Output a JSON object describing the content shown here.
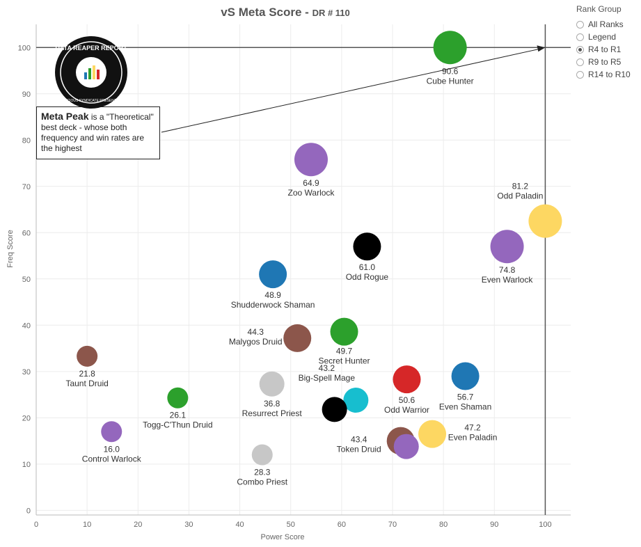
{
  "title": {
    "main": "vS Meta Score",
    "sub": "DR # 110"
  },
  "legend": {
    "title": "Rank Group",
    "options": [
      {
        "label": "All Ranks",
        "selected": false
      },
      {
        "label": "Legend",
        "selected": false
      },
      {
        "label": "R4 to R1",
        "selected": true
      },
      {
        "label": "R9 to R5",
        "selected": false
      },
      {
        "label": "R14 to R10",
        "selected": false
      }
    ]
  },
  "callout": {
    "bold": "Meta Peak",
    "text": " is a \"Theoretical\" best deck - whose both frequency and win rates are the highest"
  },
  "logo": {
    "text": "DATA REAPER REPORT",
    "small": "VICIOUS SYNDICATE PRESENTS"
  },
  "chart_data": {
    "type": "scatter",
    "xlabel": "Power Score",
    "ylabel": "Freq Score",
    "xlim": [
      0,
      105
    ],
    "ylim": [
      -1,
      105
    ],
    "xticks": [
      0,
      10,
      20,
      30,
      40,
      50,
      60,
      70,
      80,
      90,
      100
    ],
    "yticks": [
      0,
      10,
      20,
      30,
      40,
      50,
      60,
      70,
      80,
      90,
      100
    ],
    "grid": true,
    "reference_lines": {
      "x": 100,
      "y": 100
    },
    "points": [
      {
        "name": "Cube Hunter",
        "score": "90.6",
        "x": 81.3,
        "y": 100,
        "color": "#2ca02c"
      },
      {
        "name": "Zoo Warlock",
        "score": "64.9",
        "x": 54.0,
        "y": 75.8,
        "color": "#9467bd"
      },
      {
        "name": "Odd Paladin",
        "score": "81.2",
        "x": 100.0,
        "y": 62.5,
        "color": "#fdd762"
      },
      {
        "name": "Even Warlock",
        "score": "74.8",
        "x": 92.5,
        "y": 57.0,
        "color": "#9467bd"
      },
      {
        "name": "Odd Rogue",
        "score": "61.0",
        "x": 65.0,
        "y": 57.0,
        "color": "#000000"
      },
      {
        "name": "Shudderwock Shaman",
        "score": "48.9",
        "x": 46.5,
        "y": 51.0,
        "color": "#1f77b4"
      },
      {
        "name": "Secret Hunter",
        "score": "49.7",
        "x": 60.5,
        "y": 38.6,
        "color": "#2ca02c"
      },
      {
        "name": "Malygos Druid",
        "score": "44.3",
        "x": 51.3,
        "y": 37.2,
        "color": "#8c564b"
      },
      {
        "name": "Taunt Druid",
        "score": "21.8",
        "x": 10.0,
        "y": 33.3,
        "color": "#8c564b"
      },
      {
        "name": "Even Shaman",
        "score": "56.7",
        "x": 84.3,
        "y": 29.0,
        "color": "#1f77b4"
      },
      {
        "name": "Odd Warrior",
        "score": "50.6",
        "x": 72.8,
        "y": 28.3,
        "color": "#d62728"
      },
      {
        "name": "Resurrect Priest",
        "score": "36.8",
        "x": 46.3,
        "y": 27.3,
        "color": "#c7c7c7"
      },
      {
        "name": "Togg-C'Thun Druid",
        "score": "26.1",
        "x": 27.8,
        "y": 24.3,
        "color": "#2ca02c"
      },
      {
        "name": "Big-Spell Mage",
        "score": "43.2",
        "x": 62.8,
        "y": 23.8,
        "color": "#17becf"
      },
      {
        "name": "",
        "score": "",
        "x": 58.6,
        "y": 21.8,
        "color": "#000000"
      },
      {
        "name": "Even Paladin",
        "score": "47.2",
        "x": 77.8,
        "y": 16.5,
        "color": "#fdd762"
      },
      {
        "name": "Control Warlock",
        "score": "16.0",
        "x": 14.8,
        "y": 17.0,
        "color": "#9467bd"
      },
      {
        "name": "Token Druid",
        "score": "43.4",
        "x": 71.6,
        "y": 15.0,
        "color": "#8c564b"
      },
      {
        "name": "",
        "score": "",
        "x": 72.7,
        "y": 13.8,
        "color": "#9467bd"
      },
      {
        "name": "Combo Priest",
        "score": "28.3",
        "x": 44.4,
        "y": 12.0,
        "color": "#c7c7c7"
      }
    ]
  }
}
